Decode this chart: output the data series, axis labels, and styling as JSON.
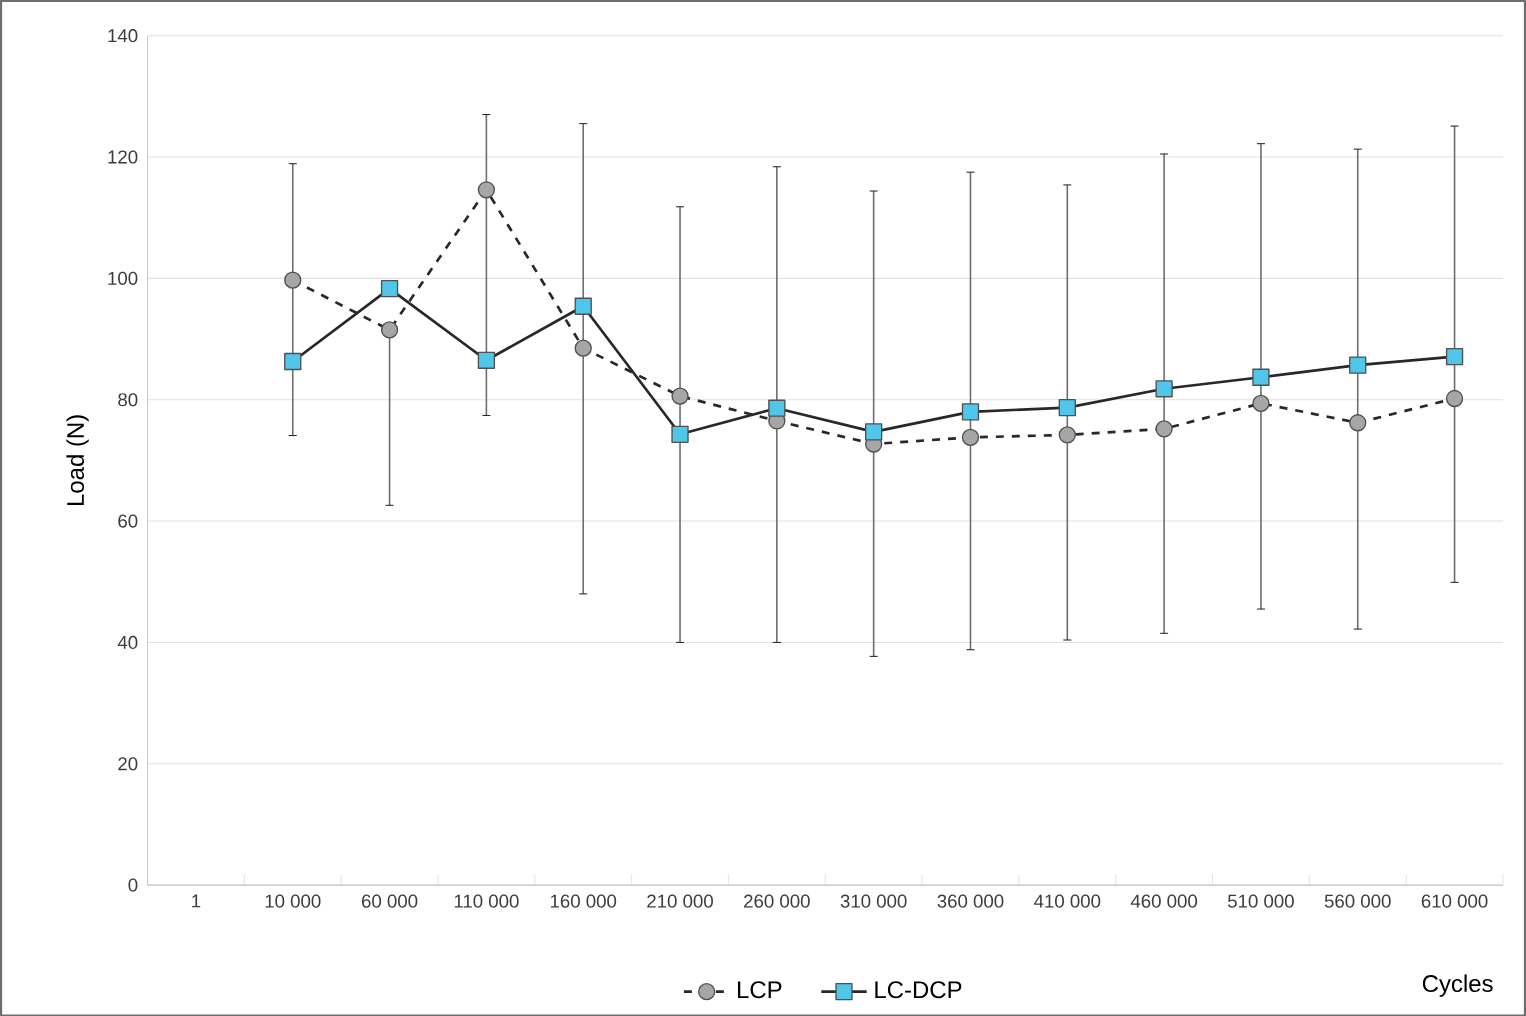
{
  "chart_data": {
    "type": "line",
    "xlabel": "Cycles",
    "ylabel": "Load (N)",
    "categories": [
      "1",
      "10 000",
      "60 000",
      "110 000",
      "160 000",
      "210 000",
      "260 000",
      "310 000",
      "360 000",
      "410 000",
      "460 000",
      "510 000",
      "560 000",
      "610 000"
    ],
    "series": [
      {
        "name": "LCP",
        "color": "#a6a6a6",
        "marker": "circle",
        "line_style": "dashed",
        "values": [
          null,
          99.7,
          91.5,
          114.6,
          88.5,
          80.6,
          76.5,
          72.7,
          73.8,
          74.2,
          75.2,
          79.4,
          76.2,
          80.2
        ],
        "errors": [
          null,
          [
            74.1,
            118.9
          ],
          [
            62.6,
            91.5
          ],
          [
            77.4,
            127
          ],
          [
            48,
            125.5
          ],
          [
            40,
            111.8
          ],
          [
            40,
            118.4
          ],
          [
            37.7,
            114.4
          ],
          [
            38.8,
            117.5
          ],
          [
            40.4,
            115.4
          ],
          [
            41.5,
            120.5
          ],
          [
            45.5,
            122.2
          ],
          [
            42.2,
            121.3
          ],
          [
            49.9,
            125.1
          ]
        ]
      },
      {
        "name": "LC-DCP",
        "color": "#4fc6ea",
        "marker": "square",
        "line_style": "solid",
        "values": [
          null,
          86.3,
          98.3,
          86.5,
          95.4,
          74.3,
          78.6,
          74.7,
          78,
          78.7,
          81.8,
          83.7,
          85.7,
          87.1
        ]
      }
    ],
    "ylim": [
      0,
      140
    ],
    "yticks": [
      0,
      20,
      40,
      60,
      80,
      100,
      120,
      140
    ],
    "grid": "y",
    "legend": "bottom"
  }
}
